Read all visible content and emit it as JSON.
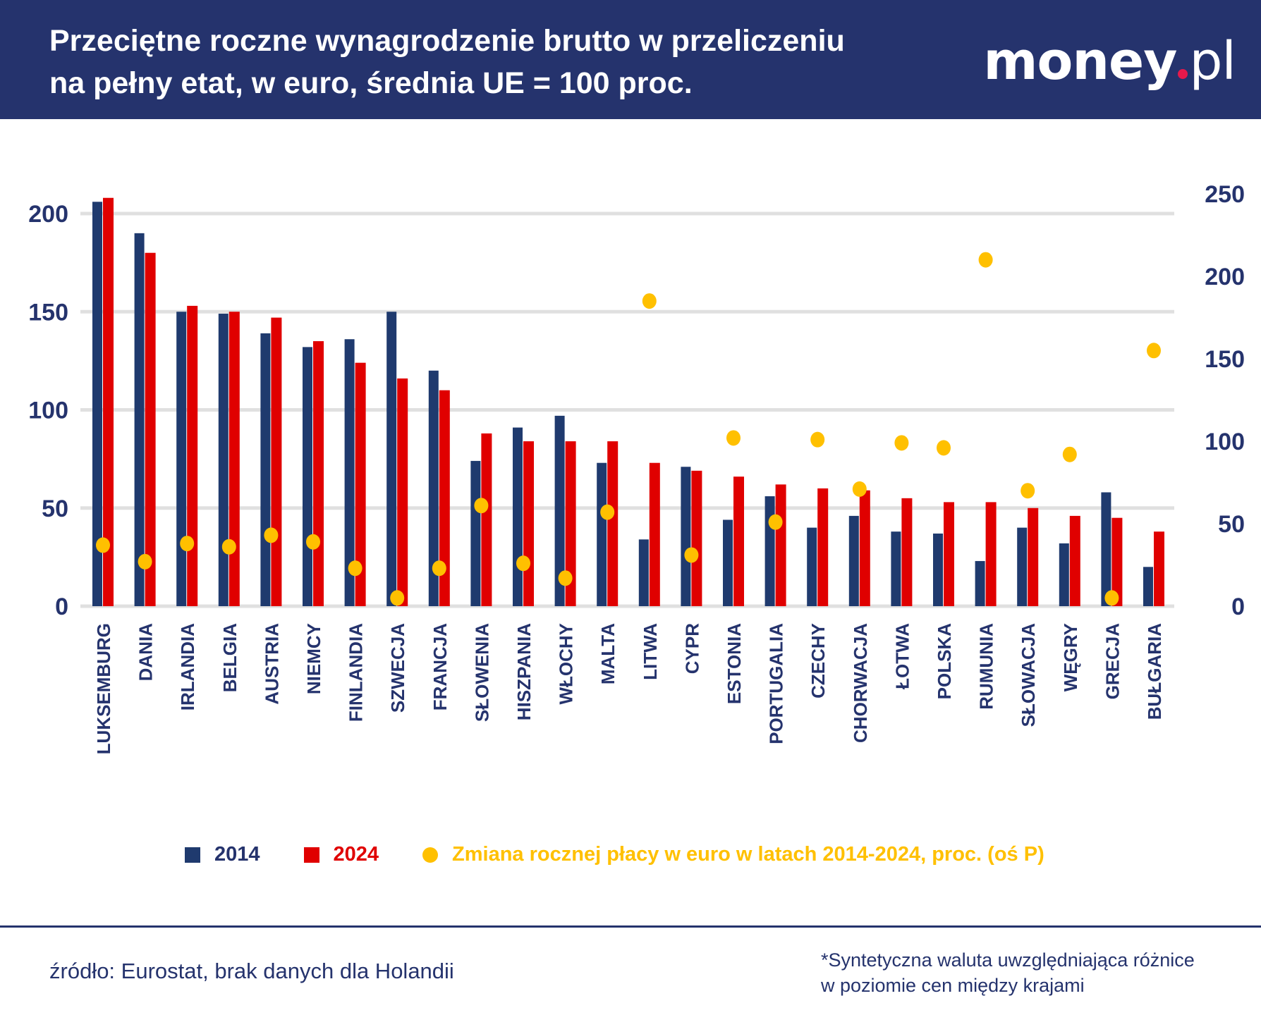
{
  "header": {
    "title_line1": "Przeciętne roczne wynagrodzenie brutto w przeliczeniu",
    "title_line2": "na pełny etat, w euro, średnia UE = 100 proc.",
    "logo_text": "money.pl"
  },
  "colors": {
    "header_bg": "#25336d",
    "series_2014": "#1f3a6e",
    "series_2024": "#e00000",
    "change": "#ffc000",
    "grid": "#e0e0e0",
    "axis_text": "#25336d"
  },
  "chart_data": {
    "type": "bar",
    "title": "Przeciętne roczne wynagrodzenie brutto w przeliczeniu na pełny etat, w euro, średnia UE = 100 proc.",
    "categories": [
      "LUKSEMBURG",
      "DANIA",
      "IRLANDIA",
      "BELGIA",
      "AUSTRIA",
      "NIEMCY",
      "FINLANDIA",
      "SZWECJA",
      "FRANCJA",
      "SŁOWENIA",
      "HISZPANIA",
      "WŁOCHY",
      "MALTA",
      "LITWA",
      "CYPR",
      "ESTONIA",
      "PORTUGALIA",
      "CZECHY",
      "CHORWACJA",
      "ŁOTWA",
      "POLSKA",
      "RUMUNIA",
      "SŁOWACJA",
      "WĘGRY",
      "GRECJA",
      "BUŁGARIA"
    ],
    "series": [
      {
        "name": "2014",
        "type": "bar",
        "axis": "left",
        "values": [
          206,
          190,
          150,
          149,
          139,
          132,
          136,
          150,
          120,
          74,
          91,
          97,
          73,
          34,
          71,
          44,
          56,
          40,
          46,
          38,
          37,
          23,
          40,
          32,
          58,
          20
        ]
      },
      {
        "name": "2024",
        "type": "bar",
        "axis": "left",
        "values": [
          208,
          180,
          153,
          150,
          147,
          135,
          124,
          116,
          110,
          88,
          84,
          84,
          84,
          73,
          69,
          66,
          62,
          60,
          59,
          55,
          53,
          53,
          50,
          46,
          45,
          38
        ]
      },
      {
        "name": "Zmiana rocznej płacy w euro w latach 2014-2024, proc. (oś P)",
        "type": "scatter",
        "axis": "right",
        "values": [
          37,
          27,
          38,
          36,
          43,
          39,
          23,
          5,
          23,
          61,
          26,
          17,
          57,
          185,
          31,
          102,
          51,
          101,
          71,
          99,
          96,
          210,
          70,
          92,
          5,
          155
        ]
      }
    ],
    "left_axis": {
      "ylim": [
        0,
        200
      ],
      "ticks": [
        "0",
        "50",
        "100",
        "150",
        "200"
      ]
    },
    "right_axis": {
      "ylim": [
        0,
        250
      ],
      "ticks": [
        "0",
        "50",
        "100",
        "150",
        "200",
        "250"
      ]
    },
    "grid": true,
    "legend_position": "bottom"
  },
  "legend": {
    "label_2014": "2014",
    "label_2024": "2024",
    "label_change": "Zmiana rocznej płacy w euro w latach 2014-2024, proc. (oś P)"
  },
  "footer": {
    "source": "źródło: Eurostat, brak danych dla Holandii",
    "note_line1": "*Syntetyczna waluta uwzględniająca różnice",
    "note_line2": "w poziomie cen między krajami"
  }
}
